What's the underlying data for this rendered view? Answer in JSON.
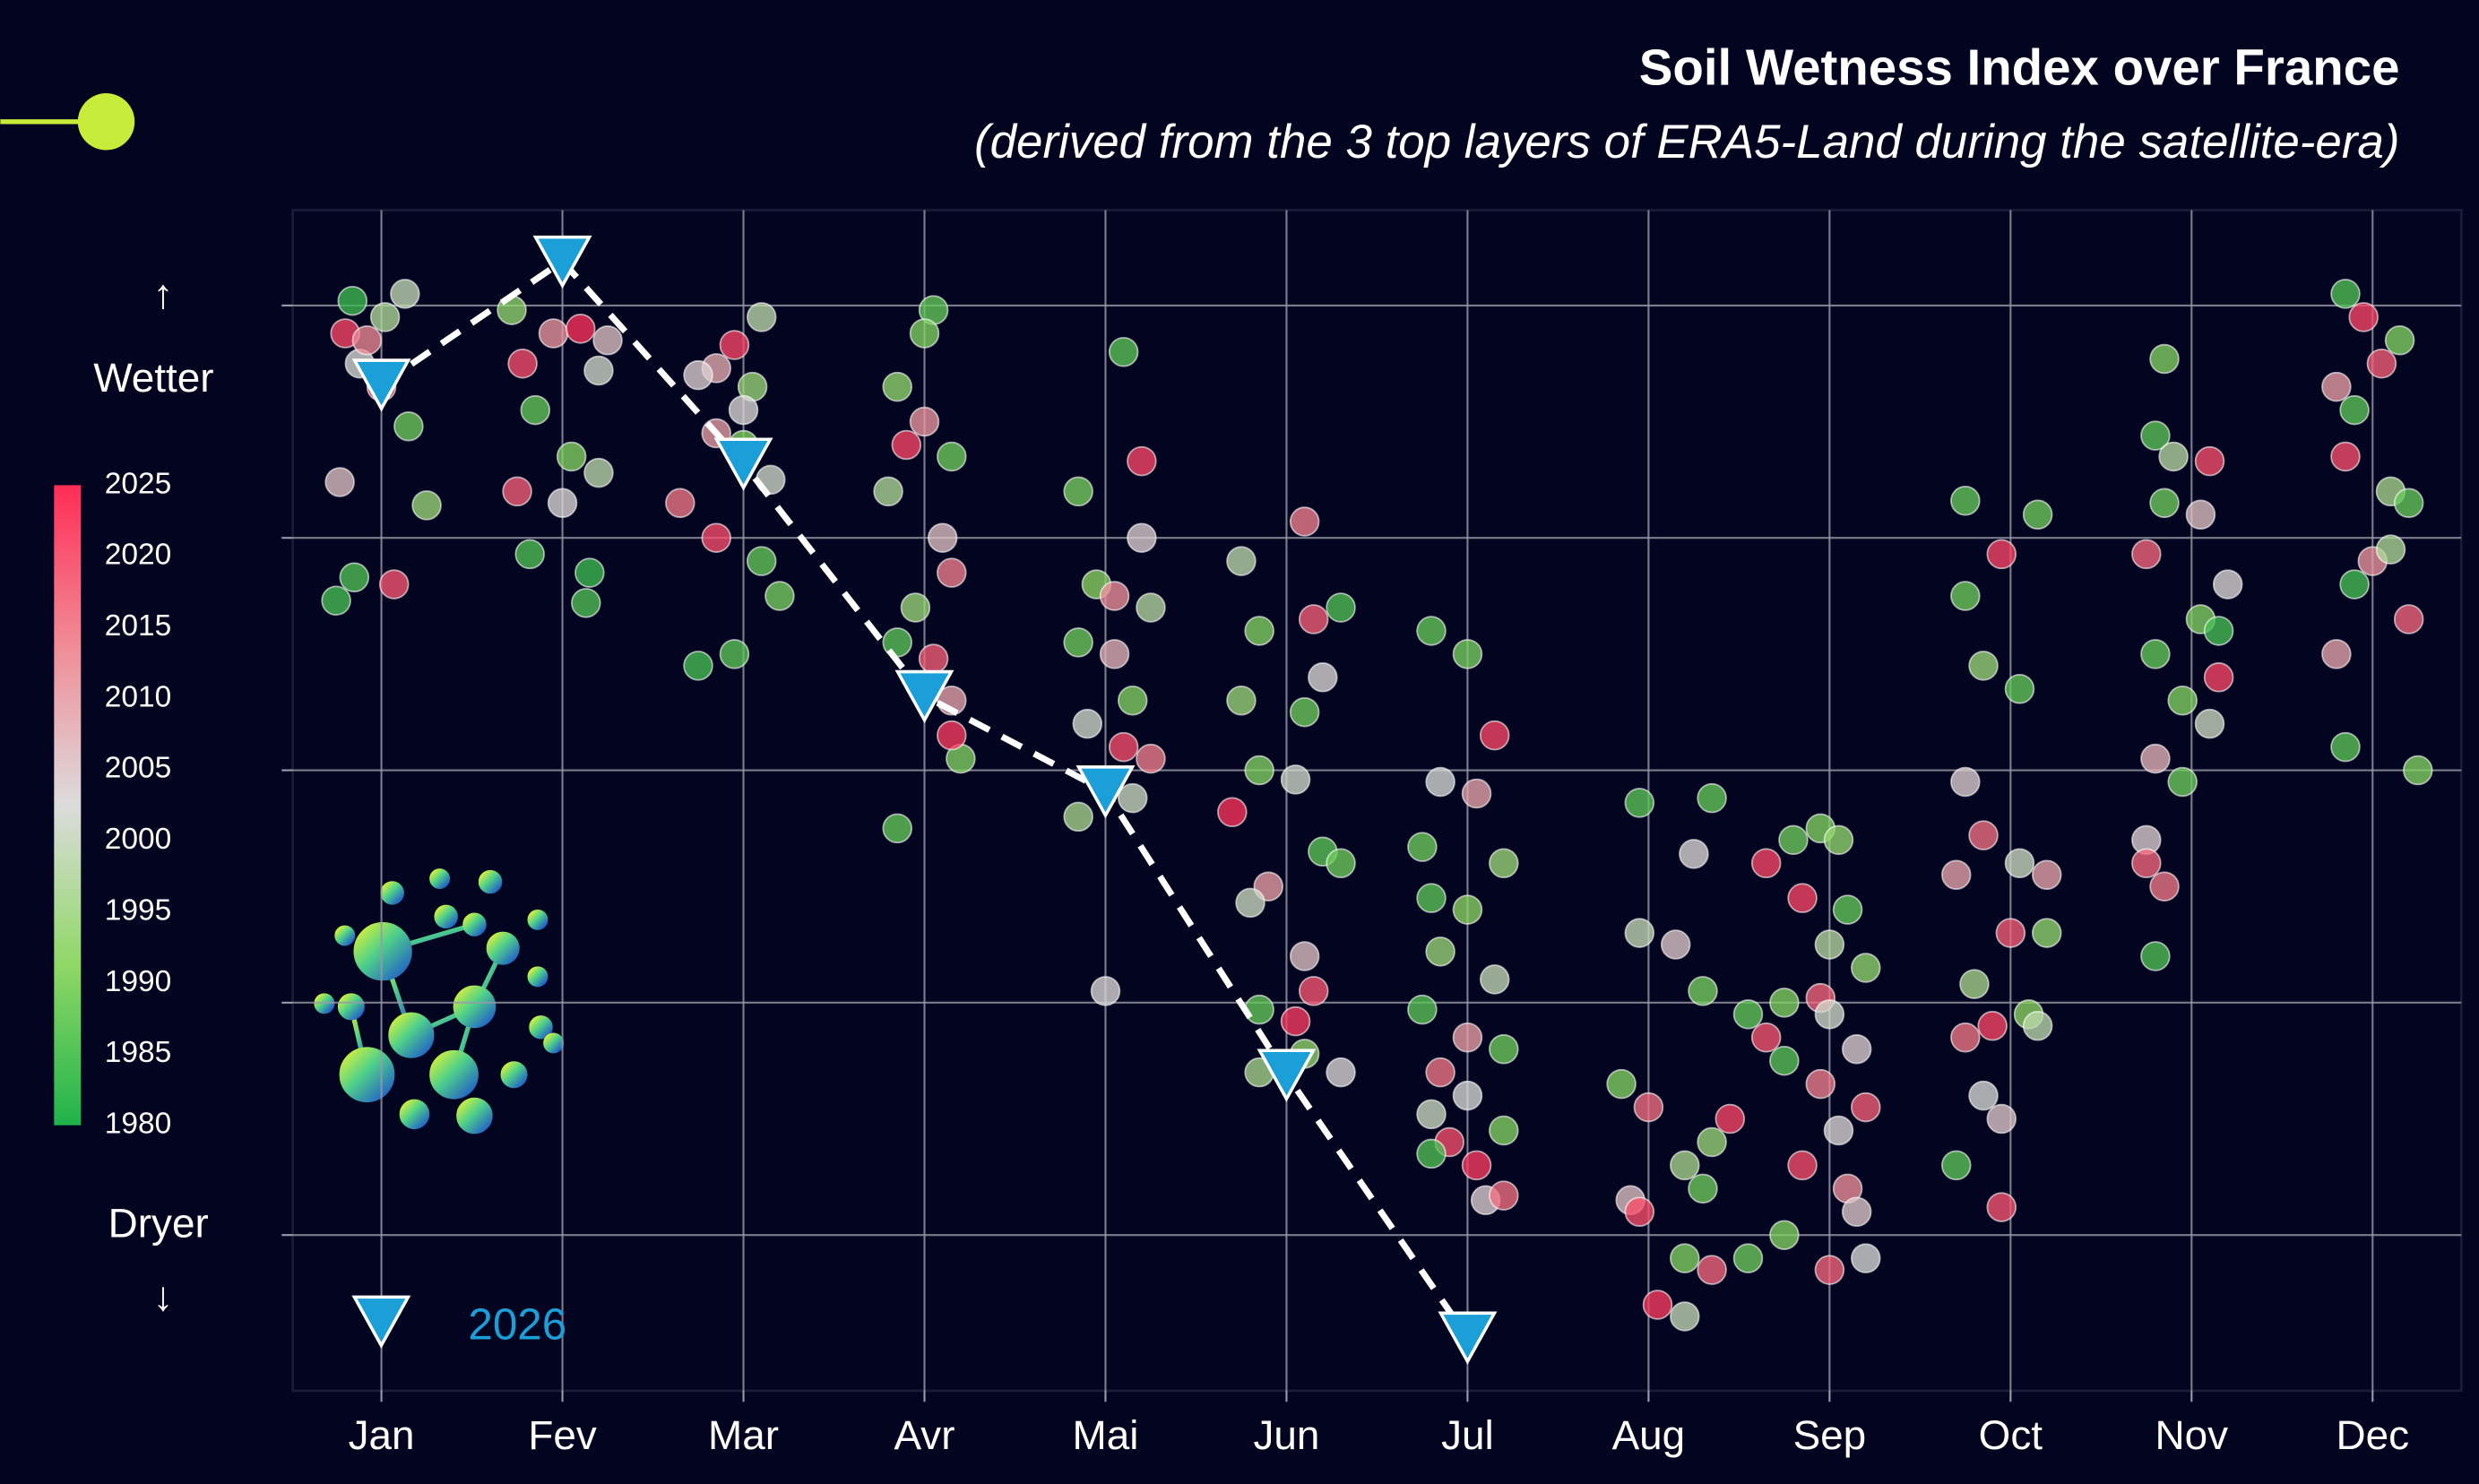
{
  "chart_data": {
    "type": "scatter",
    "title": "Soil Wetness Index over France",
    "subtitle": "(derived from the 3 top layers of ERA5-Land during the satellite-era)",
    "wetter_label": "Wetter",
    "dryer_label": "Dryer",
    "up_arrow": "↑",
    "down_arrow": "↓",
    "xlim": [
      0.51,
      12.49
    ],
    "ylim": [
      -0.67,
      4.41
    ],
    "xticks": [
      {
        "value": 1,
        "label": "Jan"
      },
      {
        "value": 2,
        "label": "Fev"
      },
      {
        "value": 3,
        "label": "Mar"
      },
      {
        "value": 4,
        "label": "Avr"
      },
      {
        "value": 5,
        "label": "Mai"
      },
      {
        "value": 6,
        "label": "Jun"
      },
      {
        "value": 7,
        "label": "Jul"
      },
      {
        "value": 8,
        "label": "Aug"
      },
      {
        "value": 9,
        "label": "Sep"
      },
      {
        "value": 10,
        "label": "Oct"
      },
      {
        "value": 11,
        "label": "Nov"
      },
      {
        "value": 12,
        "label": "Dec"
      }
    ],
    "yticks": [
      0,
      1,
      2,
      3,
      4
    ],
    "grid": true,
    "colorbar": {
      "lim": [
        1980,
        2025
      ],
      "ticks": [
        1980,
        1985,
        1990,
        1995,
        2000,
        2005,
        2010,
        2015,
        2020,
        2025
      ],
      "colormap": [
        "#1fb34a",
        "#8fd866",
        "#dcdcdc",
        "#f08c96",
        "#ff2d55"
      ]
    },
    "points": [
      [
        0.84,
        4.02,
        1983
      ],
      [
        0.8,
        3.88,
        2022
      ],
      [
        0.88,
        3.75,
        2002
      ],
      [
        1.0,
        3.65,
        2017
      ],
      [
        1.15,
        3.48,
        1988
      ],
      [
        0.77,
        3.24,
        2006
      ],
      [
        1.25,
        3.14,
        1993
      ],
      [
        0.85,
        2.83,
        1985
      ],
      [
        0.75,
        2.73,
        1984
      ],
      [
        1.07,
        2.8,
        2020
      ],
      [
        1.13,
        4.05,
        1999
      ],
      [
        0.92,
        3.85,
        2014
      ],
      [
        1.02,
        3.95,
        1996
      ],
      [
        1.72,
        3.98,
        1992
      ],
      [
        1.78,
        3.75,
        2021
      ],
      [
        1.95,
        3.88,
        2012
      ],
      [
        2.1,
        3.9,
        2024
      ],
      [
        2.2,
        3.72,
        2001
      ],
      [
        1.85,
        3.55,
        1987
      ],
      [
        1.75,
        3.2,
        2019
      ],
      [
        2.05,
        3.35,
        1990
      ],
      [
        2.2,
        3.28,
        1998
      ],
      [
        1.82,
        2.93,
        1985
      ],
      [
        2.15,
        2.85,
        1983
      ],
      [
        2.13,
        2.72,
        1985
      ],
      [
        2.0,
        3.15,
        2003
      ],
      [
        2.25,
        3.85,
        2006
      ],
      [
        2.85,
        3.73,
        2009
      ],
      [
        2.95,
        3.83,
        2022
      ],
      [
        3.1,
        3.95,
        1998
      ],
      [
        3.05,
        3.65,
        1993
      ],
      [
        2.75,
        3.7,
        2004
      ],
      [
        2.85,
        3.45,
        2011
      ],
      [
        3.0,
        3.4,
        1990
      ],
      [
        3.15,
        3.25,
        2001
      ],
      [
        2.65,
        3.15,
        2016
      ],
      [
        2.85,
        3.0,
        2021
      ],
      [
        3.1,
        2.9,
        1987
      ],
      [
        3.2,
        2.75,
        1989
      ],
      [
        2.95,
        2.5,
        1986
      ],
      [
        2.75,
        2.45,
        1984
      ],
      [
        3.0,
        3.55,
        2003
      ],
      [
        4.05,
        3.98,
        1987
      ],
      [
        4.0,
        3.88,
        1990
      ],
      [
        3.85,
        3.65,
        1992
      ],
      [
        4.0,
        3.5,
        2012
      ],
      [
        3.9,
        3.4,
        2022
      ],
      [
        4.15,
        3.35,
        1988
      ],
      [
        3.8,
        3.2,
        1996
      ],
      [
        4.1,
        3.0,
        2006
      ],
      [
        4.15,
        2.85,
        2015
      ],
      [
        3.95,
        2.7,
        1993
      ],
      [
        3.85,
        2.55,
        1986
      ],
      [
        4.05,
        2.48,
        2019
      ],
      [
        4.15,
        2.3,
        2010
      ],
      [
        4.2,
        2.05,
        1990
      ],
      [
        4.15,
        2.15,
        2023
      ],
      [
        3.85,
        1.75,
        1987
      ],
      [
        5.1,
        3.8,
        1986
      ],
      [
        5.2,
        3.33,
        2022
      ],
      [
        4.85,
        3.2,
        1989
      ],
      [
        5.2,
        3.0,
        2004
      ],
      [
        4.95,
        2.8,
        1991
      ],
      [
        5.05,
        2.75,
        2013
      ],
      [
        5.25,
        2.7,
        1997
      ],
      [
        4.85,
        2.55,
        1988
      ],
      [
        5.05,
        2.5,
        2008
      ],
      [
        5.15,
        2.3,
        1990
      ],
      [
        4.9,
        2.2,
        2001
      ],
      [
        5.25,
        2.05,
        2015
      ],
      [
        5.1,
        2.1,
        2021
      ],
      [
        5.15,
        1.88,
        2000
      ],
      [
        4.85,
        1.8,
        1995
      ],
      [
        5.0,
        1.05,
        2003
      ],
      [
        5.75,
        2.9,
        1998
      ],
      [
        6.1,
        3.07,
        2015
      ],
      [
        6.3,
        2.7,
        1985
      ],
      [
        6.15,
        2.65,
        2019
      ],
      [
        5.85,
        2.6,
        1990
      ],
      [
        6.2,
        2.4,
        2003
      ],
      [
        5.75,
        2.3,
        1993
      ],
      [
        6.1,
        2.25,
        1988
      ],
      [
        5.85,
        2.0,
        1990
      ],
      [
        6.05,
        1.96,
        2001
      ],
      [
        5.7,
        1.82,
        2024
      ],
      [
        6.2,
        1.65,
        1986
      ],
      [
        5.9,
        1.5,
        2011
      ],
      [
        6.3,
        1.6,
        1988
      ],
      [
        5.8,
        1.43,
        2000
      ],
      [
        6.1,
        1.2,
        2006
      ],
      [
        6.15,
        1.05,
        2020
      ],
      [
        5.85,
        0.97,
        1987
      ],
      [
        6.05,
        0.92,
        2023
      ],
      [
        6.1,
        0.78,
        1992
      ],
      [
        5.85,
        0.7,
        1995
      ],
      [
        6.3,
        0.7,
        2003
      ],
      [
        6.8,
        2.6,
        1987
      ],
      [
        7.0,
        2.5,
        1989
      ],
      [
        7.15,
        2.15,
        2022
      ],
      [
        6.85,
        1.95,
        2002
      ],
      [
        7.05,
        1.9,
        2010
      ],
      [
        6.75,
        1.67,
        1988
      ],
      [
        7.2,
        1.6,
        1993
      ],
      [
        6.8,
        1.45,
        1986
      ],
      [
        7.0,
        1.4,
        1991
      ],
      [
        6.85,
        1.22,
        1993
      ],
      [
        7.15,
        1.1,
        1999
      ],
      [
        6.75,
        0.97,
        1986
      ],
      [
        7.0,
        0.85,
        2011
      ],
      [
        7.2,
        0.8,
        1988
      ],
      [
        6.85,
        0.7,
        2016
      ],
      [
        7.0,
        0.6,
        2002
      ],
      [
        6.8,
        0.52,
        2000
      ],
      [
        7.2,
        0.45,
        1990
      ],
      [
        6.9,
        0.4,
        2021
      ],
      [
        7.05,
        0.3,
        2023
      ],
      [
        6.8,
        0.35,
        1985
      ],
      [
        7.1,
        0.15,
        2004
      ],
      [
        7.2,
        0.17,
        2017
      ],
      [
        7.95,
        1.86,
        1986
      ],
      [
        8.35,
        1.88,
        1987
      ],
      [
        8.25,
        1.64,
        2003
      ],
      [
        8.65,
        1.6,
        2022
      ],
      [
        7.95,
        1.3,
        1999
      ],
      [
        8.15,
        1.25,
        2005
      ],
      [
        8.3,
        1.05,
        1989
      ],
      [
        8.55,
        0.95,
        1987
      ],
      [
        8.65,
        0.85,
        2020
      ],
      [
        7.85,
        0.65,
        1990
      ],
      [
        8.0,
        0.55,
        2017
      ],
      [
        8.35,
        0.4,
        1993
      ],
      [
        8.45,
        0.5,
        2022
      ],
      [
        8.2,
        0.3,
        1995
      ],
      [
        8.3,
        0.2,
        1988
      ],
      [
        7.9,
        0.15,
        2006
      ],
      [
        7.95,
        0.1,
        2021
      ],
      [
        8.2,
        -0.1,
        1990
      ],
      [
        8.35,
        -0.15,
        2018
      ],
      [
        8.05,
        -0.3,
        2023
      ],
      [
        8.2,
        -0.35,
        1999
      ],
      [
        8.55,
        -0.1,
        1988
      ],
      [
        8.8,
        1.7,
        1988
      ],
      [
        8.95,
        1.75,
        1990
      ],
      [
        9.05,
        1.7,
        1992
      ],
      [
        8.85,
        1.45,
        2022
      ],
      [
        9.1,
        1.4,
        1987
      ],
      [
        9.0,
        1.25,
        1997
      ],
      [
        9.2,
        1.15,
        1992
      ],
      [
        8.95,
        1.02,
        2018
      ],
      [
        8.75,
        1.0,
        1990
      ],
      [
        9.0,
        0.95,
        2001
      ],
      [
        9.15,
        0.8,
        2004
      ],
      [
        8.75,
        0.75,
        1986
      ],
      [
        8.95,
        0.65,
        2015
      ],
      [
        9.2,
        0.55,
        2019
      ],
      [
        9.05,
        0.45,
        2003
      ],
      [
        8.85,
        0.3,
        2021
      ],
      [
        9.1,
        0.2,
        2013
      ],
      [
        9.15,
        0.1,
        2005
      ],
      [
        8.75,
        0.0,
        1990
      ],
      [
        9.0,
        -0.15,
        2018
      ],
      [
        9.2,
        -0.1,
        2002
      ],
      [
        9.75,
        3.16,
        1987
      ],
      [
        9.75,
        2.75,
        1988
      ],
      [
        9.95,
        2.93,
        2022
      ],
      [
        10.15,
        3.1,
        1988
      ],
      [
        9.85,
        2.45,
        1993
      ],
      [
        10.05,
        2.35,
        1987
      ],
      [
        9.75,
        1.95,
        2004
      ],
      [
        9.85,
        1.72,
        2017
      ],
      [
        10.05,
        1.6,
        2000
      ],
      [
        10.2,
        1.55,
        2010
      ],
      [
        9.7,
        1.55,
        2010
      ],
      [
        10.0,
        1.3,
        2019
      ],
      [
        10.2,
        1.3,
        1992
      ],
      [
        9.8,
        1.08,
        1995
      ],
      [
        9.9,
        0.9,
        2022
      ],
      [
        10.1,
        0.95,
        1991
      ],
      [
        9.75,
        0.85,
        2016
      ],
      [
        9.85,
        0.6,
        2002
      ],
      [
        9.95,
        0.5,
        2005
      ],
      [
        9.7,
        0.3,
        1986
      ],
      [
        9.95,
        0.12,
        2020
      ],
      [
        10.15,
        0.9,
        1998
      ],
      [
        10.85,
        3.77,
        1990
      ],
      [
        10.8,
        3.44,
        1986
      ],
      [
        10.9,
        3.35,
        1997
      ],
      [
        11.1,
        3.33,
        2021
      ],
      [
        10.85,
        3.15,
        1988
      ],
      [
        11.05,
        3.1,
        2006
      ],
      [
        11.2,
        2.8,
        2003
      ],
      [
        10.75,
        2.93,
        2018
      ],
      [
        11.05,
        2.65,
        1990
      ],
      [
        10.8,
        2.5,
        1987
      ],
      [
        11.15,
        2.4,
        2022
      ],
      [
        10.95,
        2.3,
        1990
      ],
      [
        11.1,
        2.2,
        2000
      ],
      [
        10.8,
        2.05,
        2008
      ],
      [
        10.95,
        1.95,
        1988
      ],
      [
        10.75,
        1.7,
        2004
      ],
      [
        10.75,
        1.6,
        2018
      ],
      [
        10.8,
        1.2,
        1985
      ],
      [
        10.85,
        1.5,
        2016
      ],
      [
        11.15,
        2.6,
        1984
      ],
      [
        11.85,
        4.05,
        1985
      ],
      [
        11.95,
        3.95,
        2022
      ],
      [
        12.15,
        3.85,
        1990
      ],
      [
        11.8,
        3.65,
        2011
      ],
      [
        12.05,
        3.75,
        2019
      ],
      [
        11.9,
        3.55,
        1986
      ],
      [
        11.85,
        3.35,
        2021
      ],
      [
        12.1,
        3.2,
        1995
      ],
      [
        12.2,
        3.15,
        1987
      ],
      [
        12.0,
        2.9,
        2012
      ],
      [
        11.9,
        2.8,
        1984
      ],
      [
        12.2,
        2.65,
        2018
      ],
      [
        11.8,
        2.5,
        2010
      ],
      [
        12.1,
        2.95,
        1996
      ],
      [
        11.85,
        2.1,
        1986
      ],
      [
        12.25,
        2.0,
        1990
      ]
    ],
    "series": [
      {
        "name": "2026",
        "color": "#1a9fd9",
        "x": [
          1,
          2,
          3,
          4,
          5,
          6,
          7
        ],
        "values": [
          3.66,
          4.19,
          3.32,
          2.32,
          1.91,
          0.69,
          -0.44
        ]
      }
    ]
  }
}
